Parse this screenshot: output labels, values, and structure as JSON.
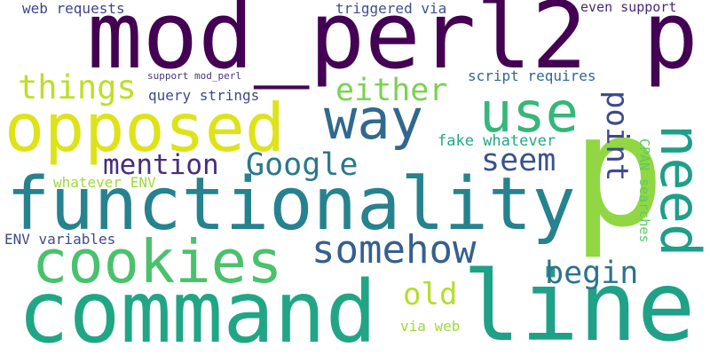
{
  "words": [
    {
      "text": "mod_perl2 p",
      "color": "#440154"
    },
    {
      "text": "p",
      "color": "#90d743"
    },
    {
      "text": "command",
      "color": "#21a685"
    },
    {
      "text": "line",
      "color": "#1fa187"
    },
    {
      "text": "functionality",
      "color": "#26828e"
    },
    {
      "text": "opposed",
      "color": "#dde318"
    },
    {
      "text": "cookies",
      "color": "#4ac16d"
    },
    {
      "text": "way",
      "color": "#31688e"
    },
    {
      "text": "use",
      "color": "#35b779"
    },
    {
      "text": "need",
      "color": "#1f9e89"
    },
    {
      "text": "point",
      "color": "#3e4989"
    },
    {
      "text": "somehow",
      "color": "#355f8d"
    },
    {
      "text": "Google",
      "color": "#2a788e"
    },
    {
      "text": "things",
      "color": "#bddf26"
    },
    {
      "text": "either",
      "color": "#7ad151"
    },
    {
      "text": "mention",
      "color": "#472d7b"
    },
    {
      "text": "seem",
      "color": "#3b528b"
    },
    {
      "text": "begin",
      "color": "#2c728e"
    },
    {
      "text": "old",
      "color": "#b5de2b"
    },
    {
      "text": "web requests",
      "color": "#414487"
    },
    {
      "text": "triggered via",
      "color": "#3b528b"
    },
    {
      "text": "even support",
      "color": "#482878"
    },
    {
      "text": "script requires",
      "color": "#31688e"
    },
    {
      "text": "support mod_perl",
      "color": "#46337e"
    },
    {
      "text": "query strings",
      "color": "#3e4989"
    },
    {
      "text": "fake whatever",
      "color": "#22a884"
    },
    {
      "text": "whatever ENV",
      "color": "#a0da39"
    },
    {
      "text": "ENV variables",
      "color": "#3e4a89"
    },
    {
      "text": "CPAN searches",
      "color": "#5ec962"
    },
    {
      "text": "via web",
      "color": "#9fda3a"
    }
  ]
}
